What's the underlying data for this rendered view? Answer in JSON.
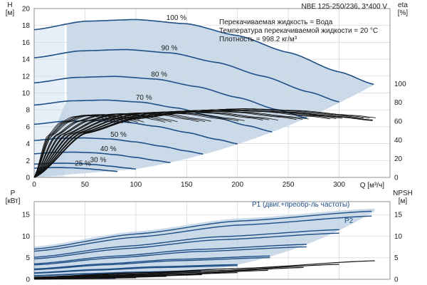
{
  "chart_data": {
    "type": "line",
    "title": "NBE 125-250/236, 3*400 V",
    "info_lines": [
      "Перекачиваемая жидкость = Вода",
      "Температура перекачиваемой жидкости = 20 °C",
      "Плотность = 998.2 кг/м³"
    ],
    "x_label": "Q [м³/ч]",
    "x_ticks": [
      "0",
      "50",
      "100",
      "150",
      "200",
      "250",
      "300"
    ],
    "xlim": [
      0,
      350
    ],
    "top_left_axis": {
      "label_line1": "H",
      "label_line2": "[м]",
      "ylim": [
        0,
        20
      ],
      "ticks": [
        "0",
        "2",
        "4",
        "6",
        "8",
        "10",
        "12",
        "14",
        "16",
        "18",
        "20"
      ]
    },
    "top_right_axis": {
      "label_line1": "eta",
      "label_line2": "[%]",
      "ylim": [
        0,
        100
      ],
      "ticks": [
        "0",
        "20",
        "40",
        "60",
        "80",
        "100"
      ]
    },
    "bottom_left_axis": {
      "label_line1": "P",
      "label_line2": "[кВт]",
      "ylim": [
        0,
        18
      ],
      "ticks": [
        "0",
        "5",
        "10",
        "15"
      ]
    },
    "bottom_right_axis": {
      "label_line1": "NPSH",
      "label_line2": "[м]",
      "ylim": [
        0,
        18
      ],
      "ticks": [
        "0",
        "5",
        "10",
        "15"
      ]
    },
    "speed_labels": [
      "100 %",
      "90 %",
      "80 %",
      "70 %",
      "60 %",
      "50 %",
      "40 %",
      "30 %",
      "25 %"
    ],
    "speeds": [
      1.0,
      0.9,
      0.8,
      0.7,
      0.6,
      0.5,
      0.4,
      0.3,
      0.25
    ],
    "head_curve_100": {
      "q": [
        0,
        50,
        100,
        150,
        200,
        250,
        300,
        335
      ],
      "h": [
        17.5,
        18.5,
        18.7,
        18.2,
        16.8,
        14.8,
        12.5,
        11.0
      ]
    },
    "efficiency_best": {
      "q": [
        0,
        50,
        100,
        150,
        200,
        250,
        300,
        335
      ],
      "eta": [
        0,
        48,
        64,
        71,
        73,
        71,
        66,
        62
      ]
    },
    "power_curve_100": {
      "q": [
        0,
        100,
        200,
        335
      ],
      "p": [
        7.0,
        10.5,
        13.5,
        15.8
      ]
    },
    "npsh_curve": {
      "q": [
        0,
        100,
        200,
        335
      ],
      "npsh": [
        0.5,
        1.5,
        2.5,
        4.3
      ]
    },
    "annotation_p1": "P1 (двиг.+преобр-ль частоты)",
    "annotation_p2": "P2"
  }
}
